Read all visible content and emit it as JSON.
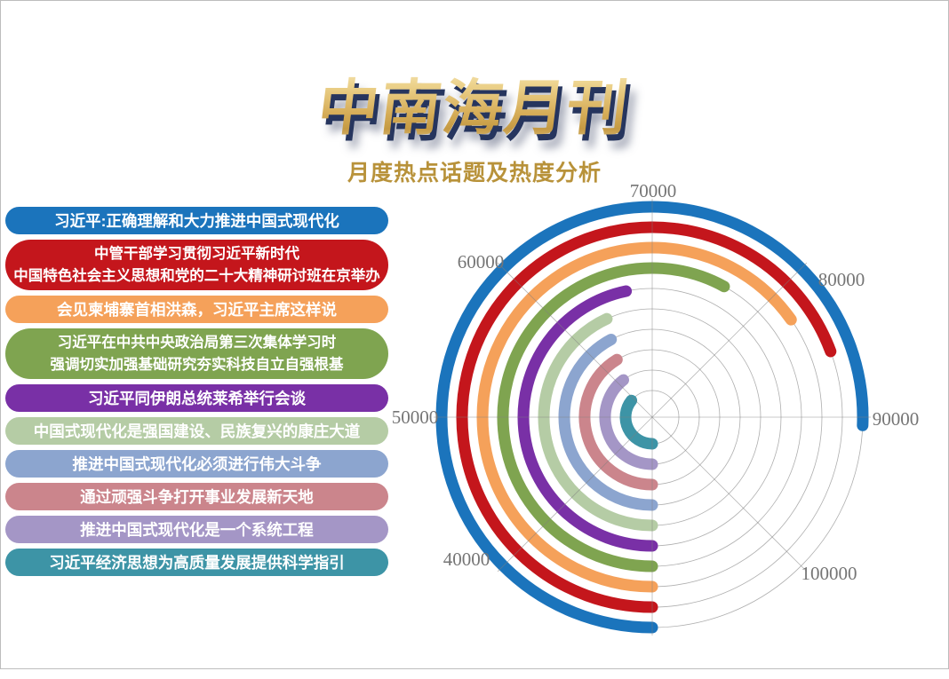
{
  "page": {
    "title": "中南海月刊",
    "subtitle": "月度热点话题及热度分析"
  },
  "chart_data": {
    "type": "radial-bar",
    "title": "月度热点话题及热度分析",
    "angle_scale": {
      "bottom_start_value": 30000,
      "units_per_45_deg": 10000,
      "direction": "clockwise from bottom (6 o'clock) through left side"
    },
    "grid": {
      "circles": 10,
      "spokes": 8
    },
    "axis_tick_values": [
      40000,
      50000,
      60000,
      70000,
      80000,
      90000,
      100000
    ],
    "series": [
      {
        "label_lines": [
          "习近平:正确理解和大力推进中国式现代化"
        ],
        "value": 90500,
        "color": "#1B74BC"
      },
      {
        "label_lines": [
          "中管干部学习贯彻习近平新时代",
          "中国特色社会主义思想和党的二十大精神研讨班在京举办"
        ],
        "value": 85500,
        "color": "#C4161C"
      },
      {
        "label_lines": [
          "会见柬埔寨首相洪森，习近平主席这样说"
        ],
        "value": 82200,
        "color": "#F5A15A"
      },
      {
        "label_lines": [
          "习近平在中共中央政治局第三次集体学习时",
          "强调切实加强基础研究夯实科技自立自强根基"
        ],
        "value": 76400,
        "color": "#7FA450"
      },
      {
        "label_lines": [
          "习近平同伊朗总统莱希举行会谈"
        ],
        "value": 67400,
        "color": "#7930A6"
      },
      {
        "label_lines": [
          "中国式现代化是强国建设、民族复兴的康庄大道"
        ],
        "value": 64500,
        "color": "#B5CCA5"
      },
      {
        "label_lines": [
          "推进中国式现代化必须进行伟大斗争"
        ],
        "value": 63800,
        "color": "#8CA5CF"
      },
      {
        "label_lines": [
          "通过顽强斗争打开事业发展新天地"
        ],
        "value": 63000,
        "color": "#CB858C"
      },
      {
        "label_lines": [
          "推进中国式现代化是一个系统工程"
        ],
        "value": 61600,
        "color": "#A496C6"
      },
      {
        "label_lines": [
          "习近平经济思想为高质量发展提供科学指引"
        ],
        "value": 58600,
        "color": "#3D94A6"
      }
    ]
  }
}
